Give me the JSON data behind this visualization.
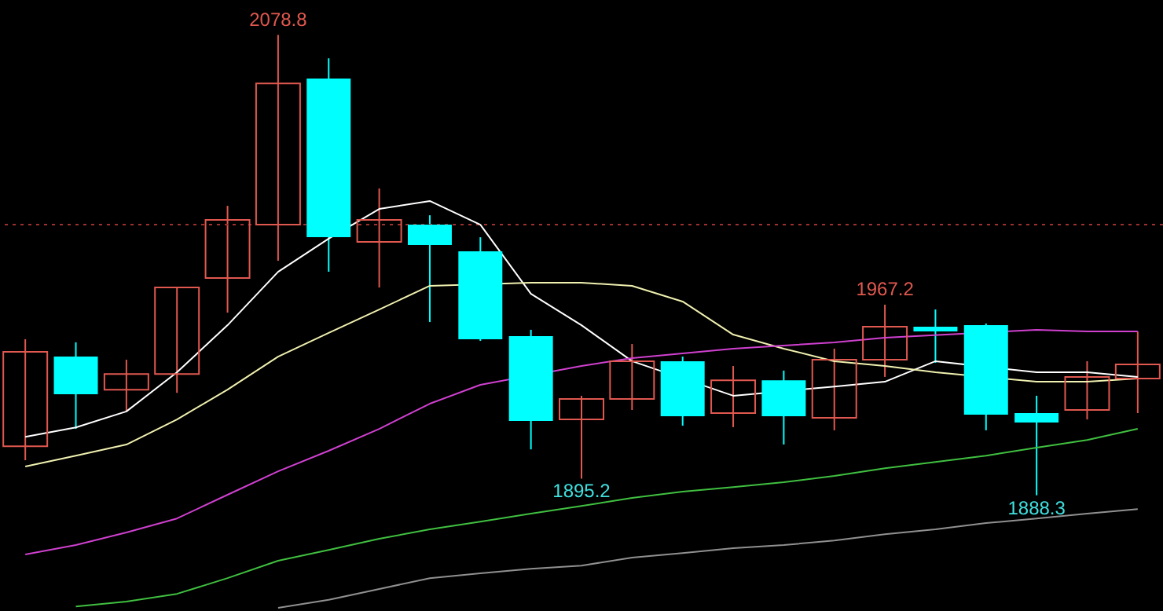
{
  "chart_data": {
    "type": "candlestick",
    "categories": [
      null,
      null,
      null,
      null,
      null,
      null,
      null,
      null,
      null,
      null,
      null,
      null,
      null,
      null,
      null,
      null,
      null,
      null,
      null,
      null,
      null,
      null,
      null
    ],
    "ohlc": [
      [
        1908.6,
        1952.9,
        1902.8,
        1947.7
      ],
      [
        1945.7,
        1951.6,
        1915.8,
        1930.1
      ],
      [
        1932.0,
        1944.4,
        1923.0,
        1938.5
      ],
      [
        1938.5,
        1974.3,
        1930.7,
        1974.3
      ],
      [
        1978.2,
        2008.1,
        1963.9,
        2002.3
      ],
      [
        2000.3,
        2078.8,
        1985.4,
        2058.8
      ],
      [
        2060.8,
        2069.2,
        1980.8,
        1995.1
      ],
      [
        1993.2,
        2015.3,
        1974.3,
        2002.3
      ],
      [
        2000.3,
        2004.2,
        1960.0,
        1991.9
      ],
      [
        1989.3,
        1995.1,
        1952.2,
        1952.9
      ],
      [
        1954.2,
        1956.8,
        1907.3,
        1919.1
      ],
      [
        1919.7,
        1929.5,
        1895.2,
        1928.2
      ],
      [
        1928.2,
        1950.9,
        1923.6,
        1943.8
      ],
      [
        1943.8,
        1945.7,
        1917.1,
        1921.0
      ],
      [
        1922.3,
        1941.8,
        1916.5,
        1935.9
      ],
      [
        1935.9,
        1939.9,
        1909.3,
        1921.0
      ],
      [
        1920.4,
        1949.0,
        1915.2,
        1944.4
      ],
      [
        1944.4,
        1967.2,
        1937.3,
        1958.1
      ],
      [
        1958.1,
        1965.2,
        1943.1,
        1956.1
      ],
      [
        1958.7,
        1959.4,
        1915.2,
        1921.7
      ],
      [
        1922.3,
        1929.5,
        1888.3,
        1918.4
      ],
      [
        1923.6,
        1943.8,
        1919.7,
        1937.3
      ],
      [
        1936.6,
        1956.1,
        1922.3,
        1942.5
      ]
    ],
    "colors": [
      "#e0584f",
      "#00ffff",
      "#e0584f",
      "#e0584f",
      "#e0584f",
      "#e0584f",
      "#00ffff",
      "#e0584f",
      "#00ffff",
      "#00ffff",
      "#00ffff",
      "#e0584f",
      "#e0584f",
      "#00ffff",
      "#e0584f",
      "#00ffff",
      "#e0584f",
      "#e0584f",
      "#00ffff",
      "#00ffff",
      "#00ffff",
      "#e0584f",
      "#e0584f"
    ],
    "series": [
      {
        "type": "line",
        "color": "#ffffff",
        "values": [
          1912.5,
          1916.4,
          1923.0,
          1939.2,
          1958.7,
          1980.8,
          1994.5,
          2006.8,
          2010.1,
          2000.3,
          1971.7,
          1958.7,
          1943.8,
          null,
          1929.5,
          null,
          1933.3,
          1935.3,
          1943.8,
          null,
          1939.2,
          1939.2,
          1937.3
        ]
      },
      {
        "type": "line",
        "color": "#f0f0b0",
        "values": [
          1900.2,
          1904.7,
          1909.3,
          1919.7,
          1932.0,
          1945.7,
          1955.5,
          1965.2,
          1975.0,
          null,
          1976.3,
          1976.3,
          1975.0,
          1968.5,
          1954.8,
          1949.0,
          1943.8,
          1941.8,
          1939.2,
          null,
          1935.3,
          1935.3,
          1936.6
        ]
      },
      {
        "type": "line",
        "color": "#d040d0",
        "values": [
          1863.8,
          1867.7,
          1872.9,
          1878.7,
          1888.5,
          1898.2,
          1906.7,
          1915.8,
          1926.2,
          1934.0,
          null,
          1941.8,
          1945.1,
          1947.0,
          1949.0,
          1950.3,
          1951.6,
          1953.5,
          null,
          null,
          1956.8,
          1956.1,
          1956.1
        ]
      },
      {
        "type": "line",
        "color": "#40c040",
        "values": [
          null,
          1842.3,
          1844.3,
          1847.5,
          1854.0,
          1861.2,
          1865.7,
          1870.3,
          1874.2,
          1877.4,
          1880.7,
          1883.9,
          1887.2,
          1889.8,
          1891.7,
          1893.7,
          1896.3,
          1899.5,
          1902.1,
          1904.7,
          1908.0,
          1911.2,
          1915.8
        ]
      },
      {
        "type": "line",
        "color": "#909090",
        "values": [
          null,
          null,
          null,
          null,
          null,
          1841.7,
          1845.0,
          1849.5,
          1854.0,
          1856.0,
          1857.9,
          1859.2,
          1862.5,
          1864.4,
          1866.4,
          1867.7,
          1869.6,
          1872.2,
          1874.2,
          1876.8,
          1878.7,
          1880.7,
          1882.6
        ]
      }
    ],
    "ylim": [
      1840.4,
      2093.3
    ],
    "tick_labels": false,
    "grid": false,
    "ref_lines": [
      {
        "axis": "y",
        "value": 2000.3,
        "color": "#a03030",
        "line_style": "dotted"
      }
    ],
    "annotations": [
      {
        "text": "2078.8",
        "y": 2078.8
      },
      {
        "text": "1967.2",
        "y": 1967.2
      },
      {
        "text": "1895.2",
        "y": 1895.2
      },
      {
        "text": "1888.3",
        "y": 1888.3
      }
    ]
  }
}
